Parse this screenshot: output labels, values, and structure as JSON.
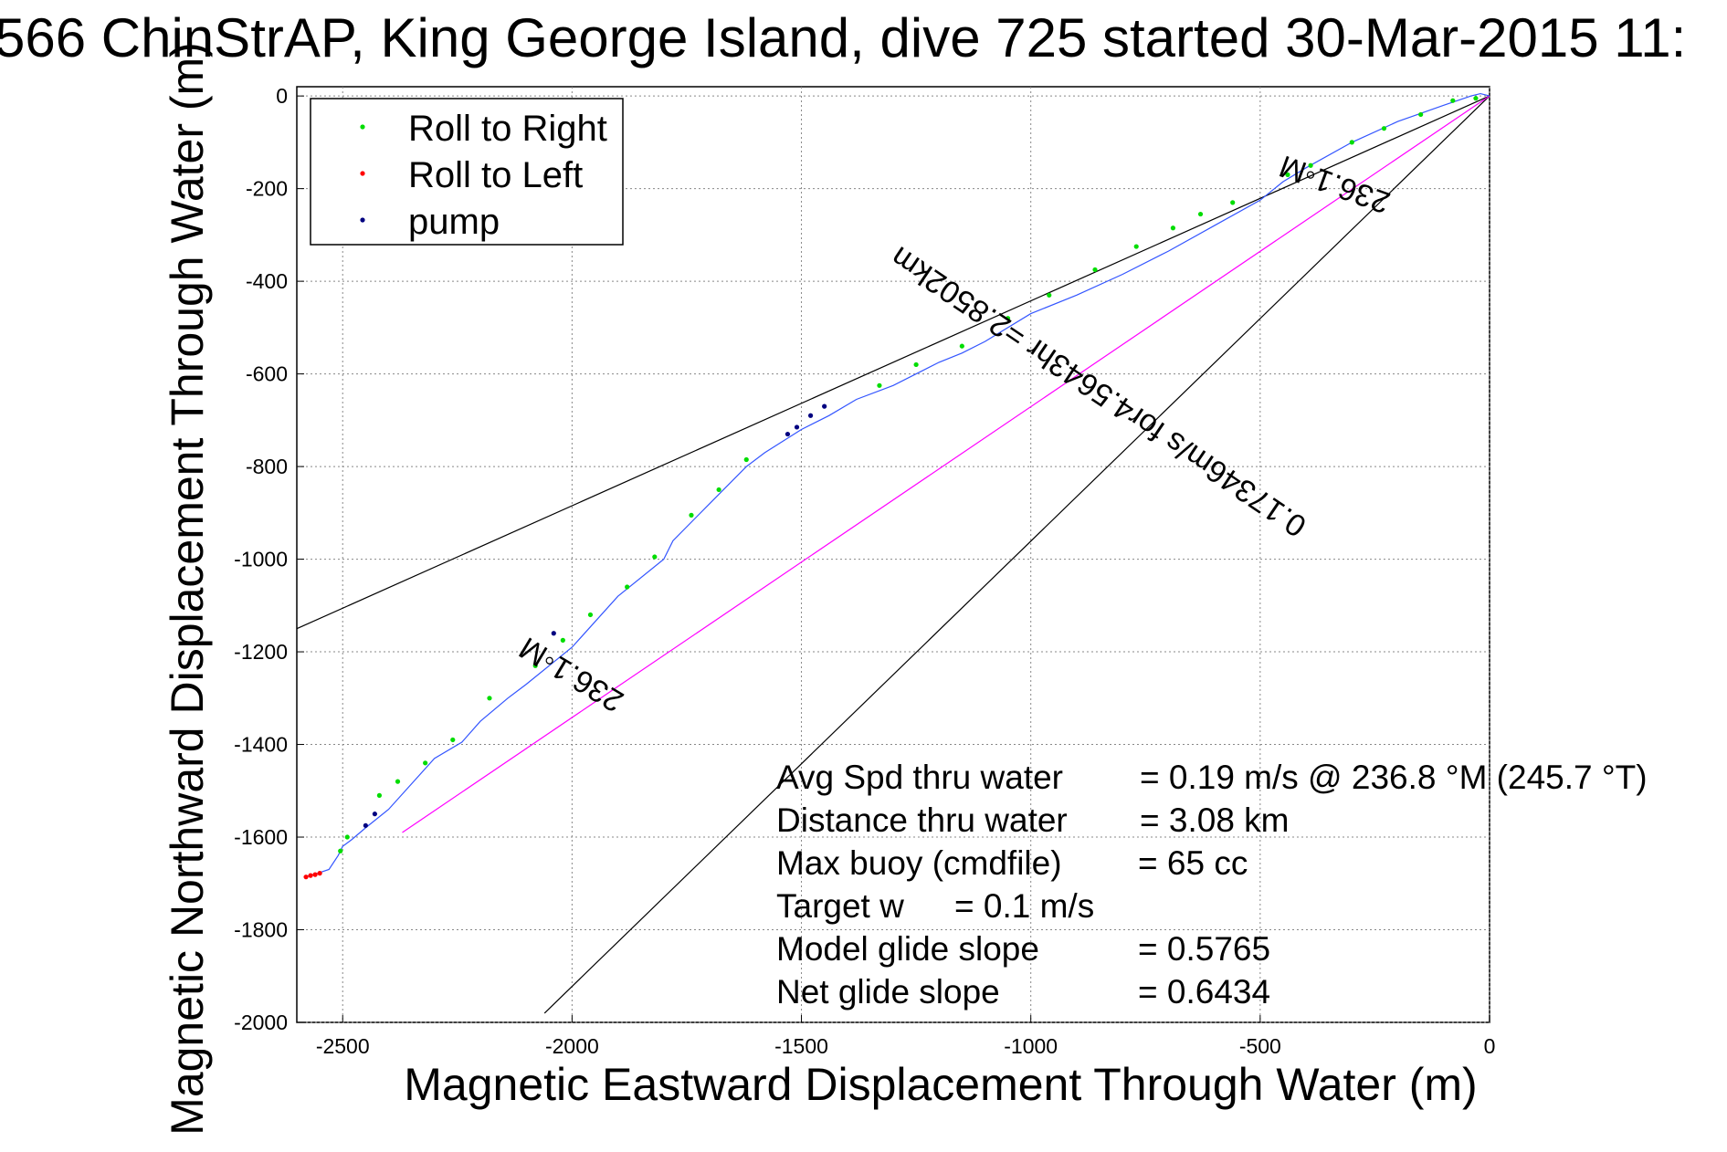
{
  "chart_data": {
    "type": "line",
    "title": "566 ChinStrAP, King George Island, dive 725 started 30-Mar-2015 11:",
    "xlabel": "Magnetic Eastward Displacement Through Water (m)",
    "ylabel": "Magnetic Northward Displacement Through Water (m)",
    "xlim": [
      -2600,
      0
    ],
    "ylim": [
      -2000,
      20
    ],
    "xticks": [
      -2500,
      -2000,
      -1500,
      -1000,
      -500,
      0
    ],
    "yticks": [
      0,
      -200,
      -400,
      -600,
      -800,
      -1000,
      -1200,
      -1400,
      -1600,
      -1800,
      -2000
    ],
    "xtick_labels": [
      "-2500",
      "-2000",
      "-1500",
      "-1000",
      "-500",
      "0"
    ],
    "ytick_labels": [
      "0",
      "-200",
      "-400",
      "-600",
      "-800",
      "-1000",
      "-1200",
      "-1400",
      "-1600",
      "-1800",
      "-2000"
    ],
    "grid": true,
    "legend_position": "top-left",
    "legend": [
      {
        "label": "Roll to Right",
        "color": "#00dd00"
      },
      {
        "label": "Roll to Left",
        "color": "#ff0000"
      },
      {
        "label": "pump",
        "color": "#000080"
      }
    ],
    "series": [
      {
        "name": "track",
        "color": "#3355ff",
        "x": [
          0,
          -20,
          -40,
          -100,
          -200,
          -300,
          -400,
          -450,
          -500,
          -600,
          -700,
          -800,
          -900,
          -1000,
          -1100,
          -1150,
          -1200,
          -1300,
          -1380,
          -1440,
          -1500,
          -1580,
          -1620,
          -1700,
          -1780,
          -1800,
          -1900,
          -2000,
          -2100,
          -2140,
          -2200,
          -2240,
          -2300,
          -2400,
          -2450,
          -2480,
          -2500,
          -2510,
          -2530,
          -2560,
          -2580
        ],
        "y": [
          0,
          5,
          0,
          -20,
          -55,
          -100,
          -155,
          -185,
          -225,
          -280,
          -335,
          -385,
          -430,
          -470,
          -530,
          -555,
          -575,
          -625,
          -655,
          -690,
          -720,
          -770,
          -800,
          -880,
          -960,
          -1000,
          -1080,
          -1190,
          -1270,
          -1300,
          -1350,
          -1395,
          -1430,
          -1540,
          -1580,
          -1605,
          -1620,
          -1640,
          -1670,
          -1680,
          -1685
        ]
      },
      {
        "name": "Roll to Right",
        "color": "#00dd00",
        "mode": "markers",
        "x": [
          -30,
          -80,
          -150,
          -230,
          -300,
          -390,
          -440,
          -560,
          -630,
          -690,
          -770,
          -860,
          -960,
          -1050,
          -1150,
          -1250,
          -1330,
          -1620,
          -1680,
          -1740,
          -1820,
          -1880,
          -1960,
          -2020,
          -2080,
          -2180,
          -2260,
          -2320,
          -2380,
          -2420,
          -2490,
          -2505
        ],
        "y": [
          -5,
          -10,
          -40,
          -70,
          -100,
          -150,
          -170,
          -230,
          -255,
          -285,
          -325,
          -375,
          -430,
          -480,
          -540,
          -580,
          -625,
          -785,
          -850,
          -905,
          -995,
          -1060,
          -1120,
          -1175,
          -1230,
          -1300,
          -1390,
          -1440,
          -1480,
          -1510,
          -1600,
          -1630
        ]
      },
      {
        "name": "Roll to Left",
        "color": "#ff0000",
        "mode": "markers",
        "x": [
          -2550,
          -2560,
          -2570,
          -2580
        ],
        "y": [
          -1678,
          -1681,
          -1683,
          -1686
        ]
      },
      {
        "name": "pump",
        "color": "#000080",
        "mode": "markers",
        "x": [
          -1450,
          -1480,
          -1510,
          -1530,
          -2040,
          -2430,
          -2450
        ],
        "y": [
          -670,
          -690,
          -715,
          -730,
          -1160,
          -1550,
          -1575
        ]
      },
      {
        "name": "",
        "color": "#000000",
        "x": [
          0,
          -2600
        ],
        "y": [
          0,
          -1150
        ]
      },
      {
        "name": "",
        "color": "#000000",
        "x": [
          0,
          -2060
        ],
        "y": [
          0,
          -1980
        ]
      },
      {
        "name": "",
        "color": "#ff00ff",
        "x": [
          0,
          -2370
        ],
        "y": [
          0,
          -1590
        ]
      }
    ],
    "annotations": [
      {
        "text": "236.1◦M",
        "x": -330,
        "y": -170,
        "angle": 200
      },
      {
        "text": "0.17346m/s for4.5643hr =2.8502km",
        "x": -840,
        "y": -620,
        "angle": 214
      },
      {
        "text": "236.1◦M",
        "x": -1990,
        "y": -1230,
        "angle": 211
      }
    ],
    "stats": [
      {
        "label": "Avg Spd thru water",
        "value": "=  0.19 m/s @ 236.8 °M (245.7 °T)"
      },
      {
        "label": "Distance thru water",
        "value": "=  3.08 km"
      },
      {
        "label": "Max buoy (cmdfile)",
        "value": "= 65 cc"
      },
      {
        "label": "Target w",
        "value": "= 0.1 m/s"
      },
      {
        "label": "Model glide slope",
        "value": "= 0.5765"
      },
      {
        "label": "Net glide slope",
        "value": "= 0.6434"
      }
    ]
  }
}
